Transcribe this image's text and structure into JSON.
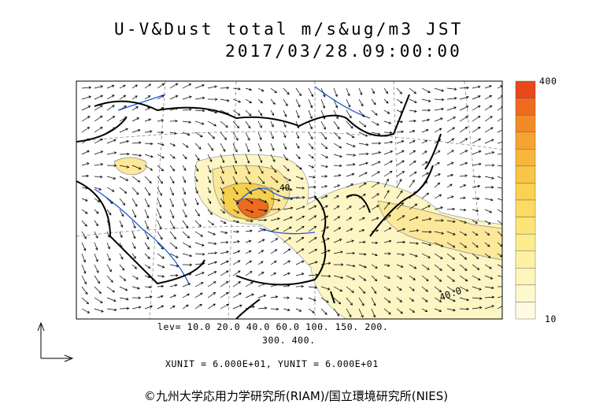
{
  "header": {
    "title": "U-V&Dust total m/s&ug/m3 JST",
    "timestamp": "2017/03/28.09:00:00"
  },
  "colorbar": {
    "top_label": "400",
    "bottom_label": "10"
  },
  "map": {
    "contour_labels": [
      "40",
      "40.0"
    ]
  },
  "legend": {
    "levels_line1": "lev= 10.0 20.0 40.0 60.0 100. 150. 200.",
    "levels_line2": "300. 400.",
    "units": "XUNIT = 6.000E+01, YUNIT = 6.000E+01"
  },
  "footer": {
    "credit": "©九州大学応用力学研究所(RIAM)/国立環境研究所(NIES)"
  }
}
